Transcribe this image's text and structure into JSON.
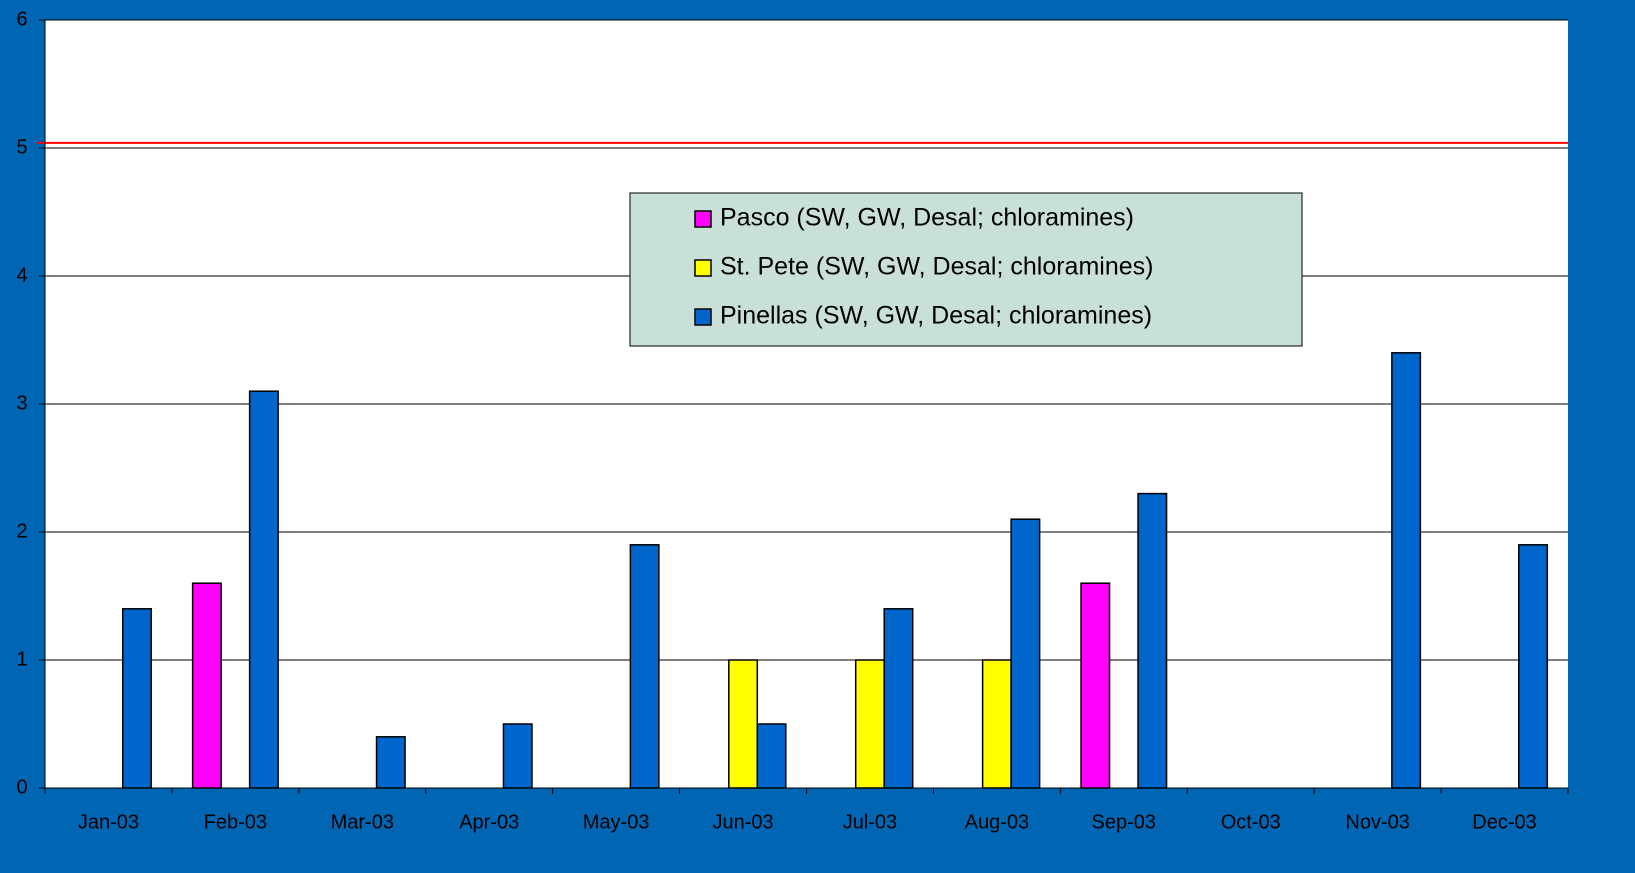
{
  "chart_data": {
    "type": "bar",
    "categories": [
      "Jan-03",
      "Feb-03",
      "Mar-03",
      "Apr-03",
      "May-03",
      "Jun-03",
      "Jul-03",
      "Aug-03",
      "Sep-03",
      "Oct-03",
      "Nov-03",
      "Dec-03"
    ],
    "series": [
      {
        "name": "Pasco (SW, GW, Desal; chloramines)",
        "color": "#ff00ff",
        "values": [
          null,
          1.6,
          null,
          null,
          null,
          null,
          null,
          null,
          1.6,
          null,
          null,
          null
        ]
      },
      {
        "name": "St. Pete (SW, GW, Desal; chloramines)",
        "color": "#ffff00",
        "values": [
          null,
          null,
          null,
          null,
          null,
          1.0,
          1.0,
          1.0,
          null,
          null,
          null,
          null
        ]
      },
      {
        "name": "Pinellas (SW, GW, Desal; chloramines)",
        "color": "#0066cc",
        "values": [
          1.4,
          3.1,
          0.4,
          0.5,
          1.9,
          0.5,
          1.4,
          2.1,
          2.3,
          null,
          3.4,
          1.9
        ]
      }
    ],
    "ylim": [
      0,
      6
    ],
    "yticks": [
      0,
      1,
      2,
      3,
      4,
      5,
      6
    ],
    "grid": true,
    "reference_line": {
      "value": 5.04,
      "color": "#ff0000"
    },
    "legend": "center"
  }
}
